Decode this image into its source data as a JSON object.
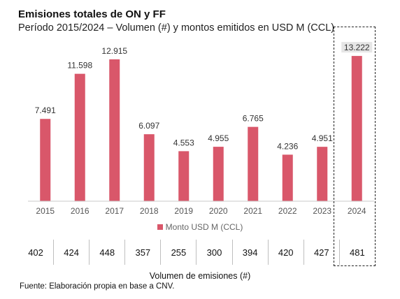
{
  "header": {
    "title": "Emisiones totales de ON y FF",
    "subtitle": "Período 2015/2024 – Volumen (#) y montos emitidos en USD M (CCL)"
  },
  "chart_data": {
    "type": "bar",
    "categories": [
      "2015",
      "2016",
      "2017",
      "2018",
      "2019",
      "2020",
      "2021",
      "2022",
      "2023",
      "2024"
    ],
    "series": [
      {
        "name": "Monto USD M (CCL)",
        "values": [
          7491,
          11598,
          12915,
          6097,
          4553,
          4955,
          6765,
          4236,
          4951,
          13222
        ]
      }
    ],
    "data_labels": [
      "7.491",
      "11.598",
      "12.915",
      "6.097",
      "4.553",
      "4.955",
      "6.765",
      "4.236",
      "4.951",
      "13.222"
    ],
    "ylim": [
      0,
      14500
    ],
    "grid": false,
    "legend_position": "bottom",
    "bar_color": "#d9576a",
    "highlighted_category": "2024"
  },
  "counts": {
    "label": "Volumen de emisiones (#)",
    "values": [
      "402",
      "424",
      "448",
      "357",
      "255",
      "300",
      "394",
      "420",
      "427",
      "481"
    ]
  },
  "footer": {
    "source": "Fuente: Elaboración propia en base a CNV."
  }
}
